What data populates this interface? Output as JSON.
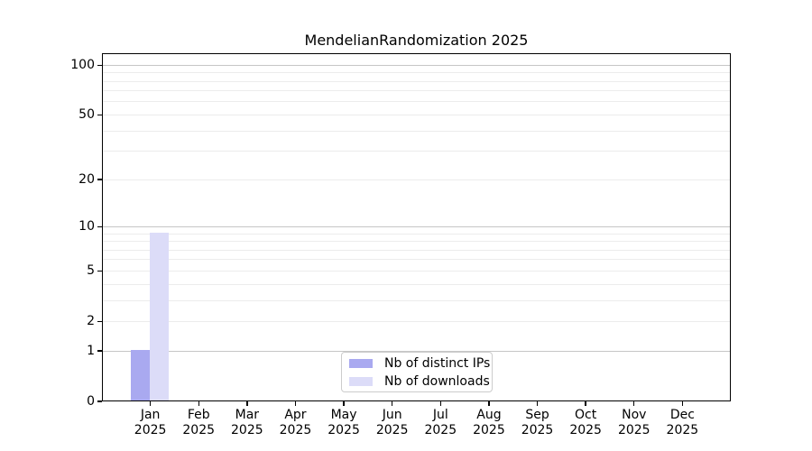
{
  "chart_data": {
    "type": "bar",
    "title": "MendelianRandomization 2025",
    "x": {
      "months": [
        "Jan",
        "Feb",
        "Mar",
        "Apr",
        "May",
        "Jun",
        "Jul",
        "Aug",
        "Sep",
        "Oct",
        "Nov",
        "Dec"
      ],
      "year_label": "2025"
    },
    "series": [
      {
        "name": "Nb of distinct IPs",
        "color": "#a9a9f0",
        "values": [
          1,
          0,
          0,
          0,
          0,
          0,
          0,
          0,
          0,
          0,
          0,
          0
        ]
      },
      {
        "name": "Nb of downloads",
        "color": "#dcdcf8",
        "values": [
          9,
          0,
          0,
          0,
          0,
          0,
          0,
          0,
          0,
          0,
          0,
          0
        ]
      }
    ],
    "y_axis": {
      "scale": "log1p",
      "tick_values": [
        0,
        1,
        2,
        5,
        10,
        20,
        50,
        100
      ],
      "max": 118,
      "decade_gridlines": [
        1,
        10,
        100
      ],
      "minor_gridlines": [
        2,
        3,
        4,
        5,
        6,
        7,
        8,
        9,
        20,
        30,
        40,
        50,
        60,
        70,
        80,
        90
      ]
    },
    "legend": {
      "position": "lower center"
    },
    "colors": {
      "background": "#ffffff",
      "axis": "#000000",
      "major_grid": "#c6c6c6",
      "minor_grid": "#ececec",
      "legend_border": "#cccccc"
    },
    "grid": true
  }
}
